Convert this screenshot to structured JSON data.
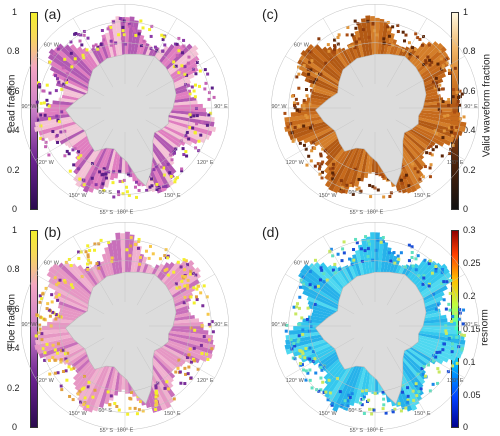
{
  "panels": {
    "a": {
      "label": "(a)",
      "colorbar_title": "Lead fraction",
      "ticks": [
        "1",
        "0.8",
        "0.6",
        "0.4",
        "0.2",
        "0"
      ],
      "colormap": "purple-pink-yellow",
      "colorbar_side": "left"
    },
    "c": {
      "label": "(c)",
      "colorbar_title": "Valid waveform fraction",
      "ticks": [
        "1",
        "0.8",
        "0.6",
        "0.4",
        "0.2",
        "0"
      ],
      "colormap": "black-brown-orange-cream",
      "colorbar_side": "right"
    },
    "b": {
      "label": "(b)",
      "colorbar_title": "Floe fraction",
      "ticks": [
        "1",
        "0.8",
        "0.6",
        "0.4",
        "0.2",
        "0"
      ],
      "colormap": "purple-pink-yellow",
      "colorbar_side": "left"
    },
    "d": {
      "label": "(d)",
      "colorbar_title": "resnorm",
      "ticks": [
        "0.3",
        "0.25",
        "0.2",
        "0.15",
        "0.1",
        "0.05",
        "0"
      ],
      "colormap": "jet",
      "colorbar_side": "right"
    }
  },
  "grid_labels": {
    "lon_60w": "60° W",
    "lon_90w": "90° W",
    "lon_120w": "120° W",
    "lon_150w": "150° W",
    "lon_180e": "180° E",
    "lon_150e": "150° E",
    "lon_120e": "120° E",
    "lon_90e": "90° E",
    "lat_55s": "55° S",
    "lat_60s": "60° S"
  },
  "colors": {
    "antarctica": "#dcdcdc",
    "coast": "#b8b8b8",
    "grid": "#c0c0c0",
    "purple": "#4b1373",
    "pink": "#d67fb8",
    "yellow": "#f2e21a",
    "orange": "#c7671a",
    "brown": "#8a3a0d",
    "cream": "#fff6d8",
    "cyan": "#35c8ee",
    "blue": "#1a4fd8"
  }
}
